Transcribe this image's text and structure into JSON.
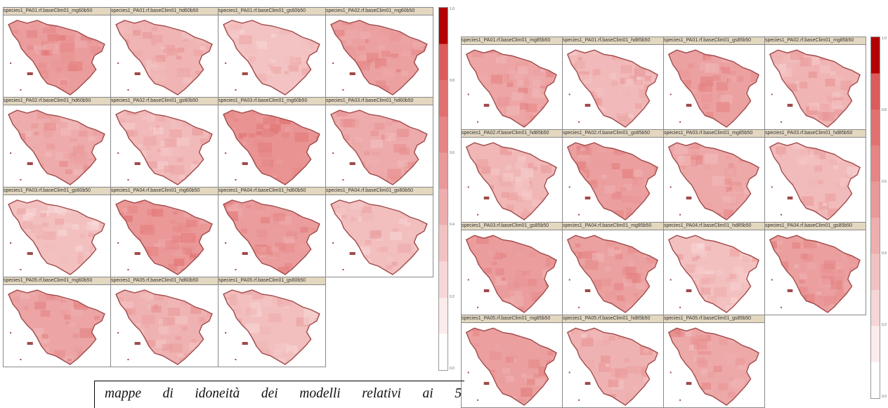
{
  "figures": [
    {
      "panel_titles": [
        "species1_PA01.rf.baseClim01_mg60b50",
        "species1_PA01.rf.baseClim01_hd60b50",
        "species1_PA01.rf.baseClim01_gs60b50",
        "species1_PA02.rf.baseClim01_mg60b50",
        "species1_PA02.rf.baseClim01_hd60b50",
        "species1_PA02.rf.baseClim01_gs60b50",
        "species1_PA03.rf.baseClim01_mg60b50",
        "species1_PA03.rf.baseClim01_hd60b50",
        "species1_PA03.rf.baseClim01_gs60b50",
        "species1_PA04.rf.baseClim01_mg60b50",
        "species1_PA04.rf.baseClim01_hd60b50",
        "species1_PA04.rf.baseClim01_gs60b50",
        "species1_PA05.rf.baseClim01_mg60b50",
        "species1_PA05.rf.baseClim01_hd60b50",
        "species1_PA05.rf.baseClim01_gs60b50"
      ],
      "intensity": [
        0.62,
        0.42,
        0.3,
        0.58,
        0.5,
        0.38,
        0.7,
        0.5,
        0.32,
        0.66,
        0.62,
        0.34,
        0.56,
        0.44,
        0.34
      ],
      "legend_ticks": [
        "1.0",
        "0.8",
        "0.6",
        "0.4",
        "0.2",
        "0.0"
      ]
    },
    {
      "panel_titles": [
        "species1_PA01.rf.baseClim01_mg85b50",
        "species1_PA01.rf.baseClim01_hd85b50",
        "species1_PA01.rf.baseClim01_gs85b50",
        "species1_PA02.rf.baseClim01_mg85b50",
        "species1_PA02.rf.baseClim01_hd85b50",
        "species1_PA02.rf.baseClim01_gs85b50",
        "species1_PA03.rf.baseClim01_mg85b50",
        "species1_PA03.rf.baseClim01_hd85b50",
        "species1_PA03.rf.baseClim01_gs85b50",
        "species1_PA04.rf.baseClim01_mg85b50",
        "species1_PA04.rf.baseClim01_hd85b50",
        "species1_PA04.rf.baseClim01_gs85b50",
        "species1_PA05.rf.baseClim01_mg85b50",
        "species1_PA05.rf.baseClim01_hd85b50",
        "species1_PA05.rf.baseClim01_gs85b50"
      ],
      "intensity": [
        0.55,
        0.38,
        0.58,
        0.42,
        0.4,
        0.6,
        0.52,
        0.36,
        0.62,
        0.58,
        0.32,
        0.6,
        0.6,
        0.44,
        0.52
      ],
      "legend_ticks": [
        "1.0",
        "0.8",
        "0.6",
        "0.4",
        "0.2",
        "0.0"
      ]
    }
  ],
  "colors": {
    "low": "#fbe6e6",
    "high": "#d84848",
    "legend_top": "#b30000",
    "outline": "#a04a4a"
  },
  "caption": "mappe di idoneità dei modelli relativi ai 5"
}
